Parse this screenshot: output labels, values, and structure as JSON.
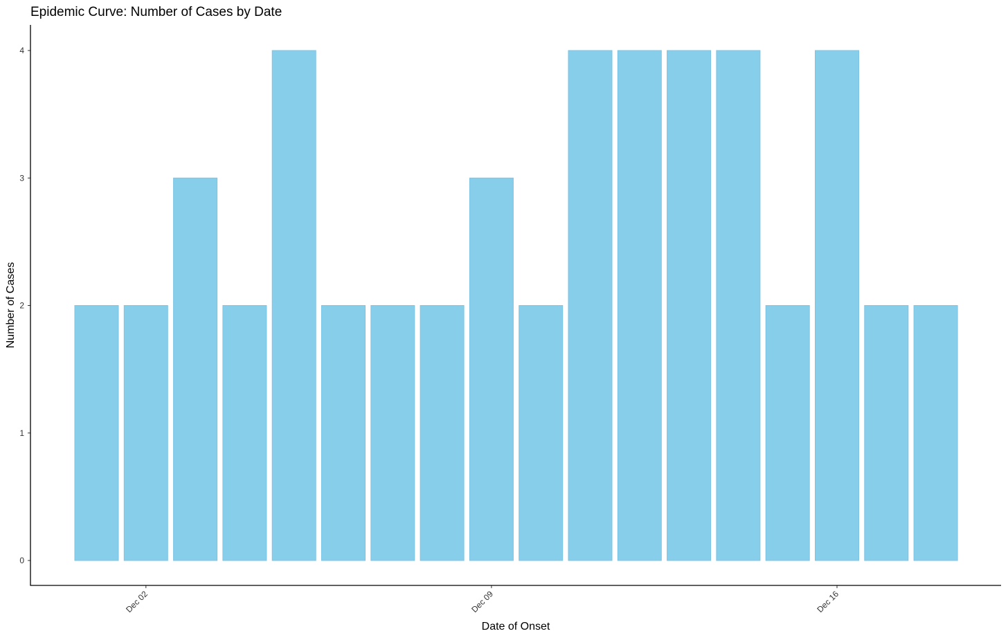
{
  "chart_data": {
    "type": "bar",
    "title": "Epidemic Curve: Number of Cases by Date",
    "xlabel": "Date of Onset",
    "ylabel": "Number of Cases",
    "bar_color": "#87CEEB",
    "bar_border_color": "#7cc4e4",
    "x": [
      "2023-12-01",
      "2023-12-02",
      "2023-12-03",
      "2023-12-04",
      "2023-12-05",
      "2023-12-06",
      "2023-12-07",
      "2023-12-08",
      "2023-12-09",
      "2023-12-10",
      "2023-12-11",
      "2023-12-12",
      "2023-12-13",
      "2023-12-14",
      "2023-12-15",
      "2023-12-16",
      "2023-12-17",
      "2023-12-18"
    ],
    "values": [
      2,
      2,
      3,
      2,
      4,
      2,
      2,
      2,
      3,
      2,
      4,
      4,
      4,
      4,
      2,
      4,
      2,
      2
    ],
    "ylim": [
      0,
      4
    ],
    "y_ticks": [
      0,
      1,
      2,
      3,
      4
    ],
    "x_ticks": [
      {
        "date": "2023-12-02",
        "label": "Dec 02"
      },
      {
        "date": "2023-12-09",
        "label": "Dec 09"
      },
      {
        "date": "2023-12-16",
        "label": "Dec 16"
      }
    ],
    "grid": false,
    "legend": "none"
  }
}
